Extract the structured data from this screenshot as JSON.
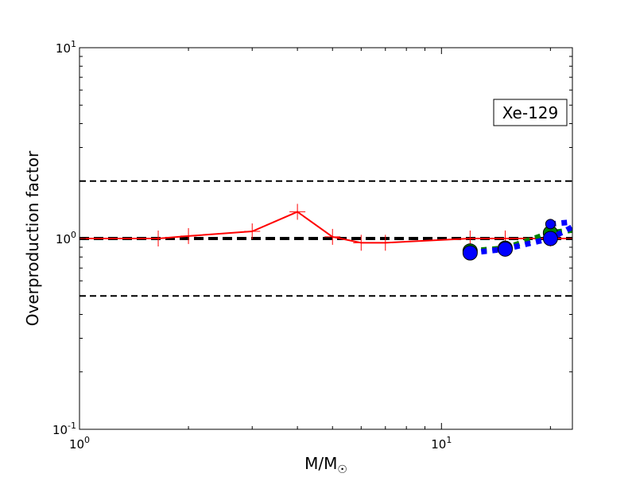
{
  "chart_data": {
    "type": "line",
    "xscale": "log",
    "yscale": "log",
    "xlim": [
      1,
      23
    ],
    "ylim": [
      0.1,
      10
    ],
    "xlabel_main": "M/M",
    "xlabel_sub": "☉",
    "ylabel": "Overproduction factor",
    "annotation": "Xe-129",
    "grid": false,
    "x_ticks": [
      {
        "value": 1,
        "base": "10",
        "exp": "0"
      },
      {
        "value": 10,
        "base": "10",
        "exp": "1"
      }
    ],
    "y_ticks": [
      {
        "value": 0.1,
        "base": "10",
        "exp": "-1"
      },
      {
        "value": 1,
        "base": "10",
        "exp": "0"
      },
      {
        "value": 10,
        "base": "10",
        "exp": "1"
      }
    ],
    "reference_lines": [
      {
        "y": 2.0,
        "color": "#000000",
        "style": "dashed"
      },
      {
        "y": 1.0,
        "color": "#000000",
        "style": "dashed-thick"
      },
      {
        "y": 0.5,
        "color": "#000000",
        "style": "dashed"
      }
    ],
    "series": [
      {
        "color": "#ff0000",
        "line": "solid",
        "marker": "plus",
        "x": [
          1.0,
          1.65,
          2.0,
          3.0,
          4.0,
          5.0,
          6.0,
          7.0,
          12.0,
          15.0,
          20.0,
          25.0
        ],
        "y": [
          1.0,
          1.0,
          1.03,
          1.09,
          1.38,
          1.02,
          0.95,
          0.95,
          1.0,
          1.0,
          1.0,
          1.0
        ]
      },
      {
        "color": "#008000",
        "line": "dotted-thick",
        "marker": "circle",
        "x": [
          12.0,
          15.0,
          20.0,
          25.0
        ],
        "y": [
          0.86,
          0.89,
          1.07,
          1.13
        ]
      },
      {
        "color": "#0000ff",
        "line": "dotted-thick",
        "marker": "circle",
        "x": [
          12.0,
          15.0,
          20.0,
          25.0
        ],
        "y": [
          0.84,
          0.88,
          1.0,
          1.25
        ]
      },
      {
        "color": "#0000ff",
        "line": "dotted-thick",
        "marker": "circle-small",
        "x": [
          20.0,
          25.0
        ],
        "y": [
          1.19,
          1.24
        ]
      }
    ]
  }
}
